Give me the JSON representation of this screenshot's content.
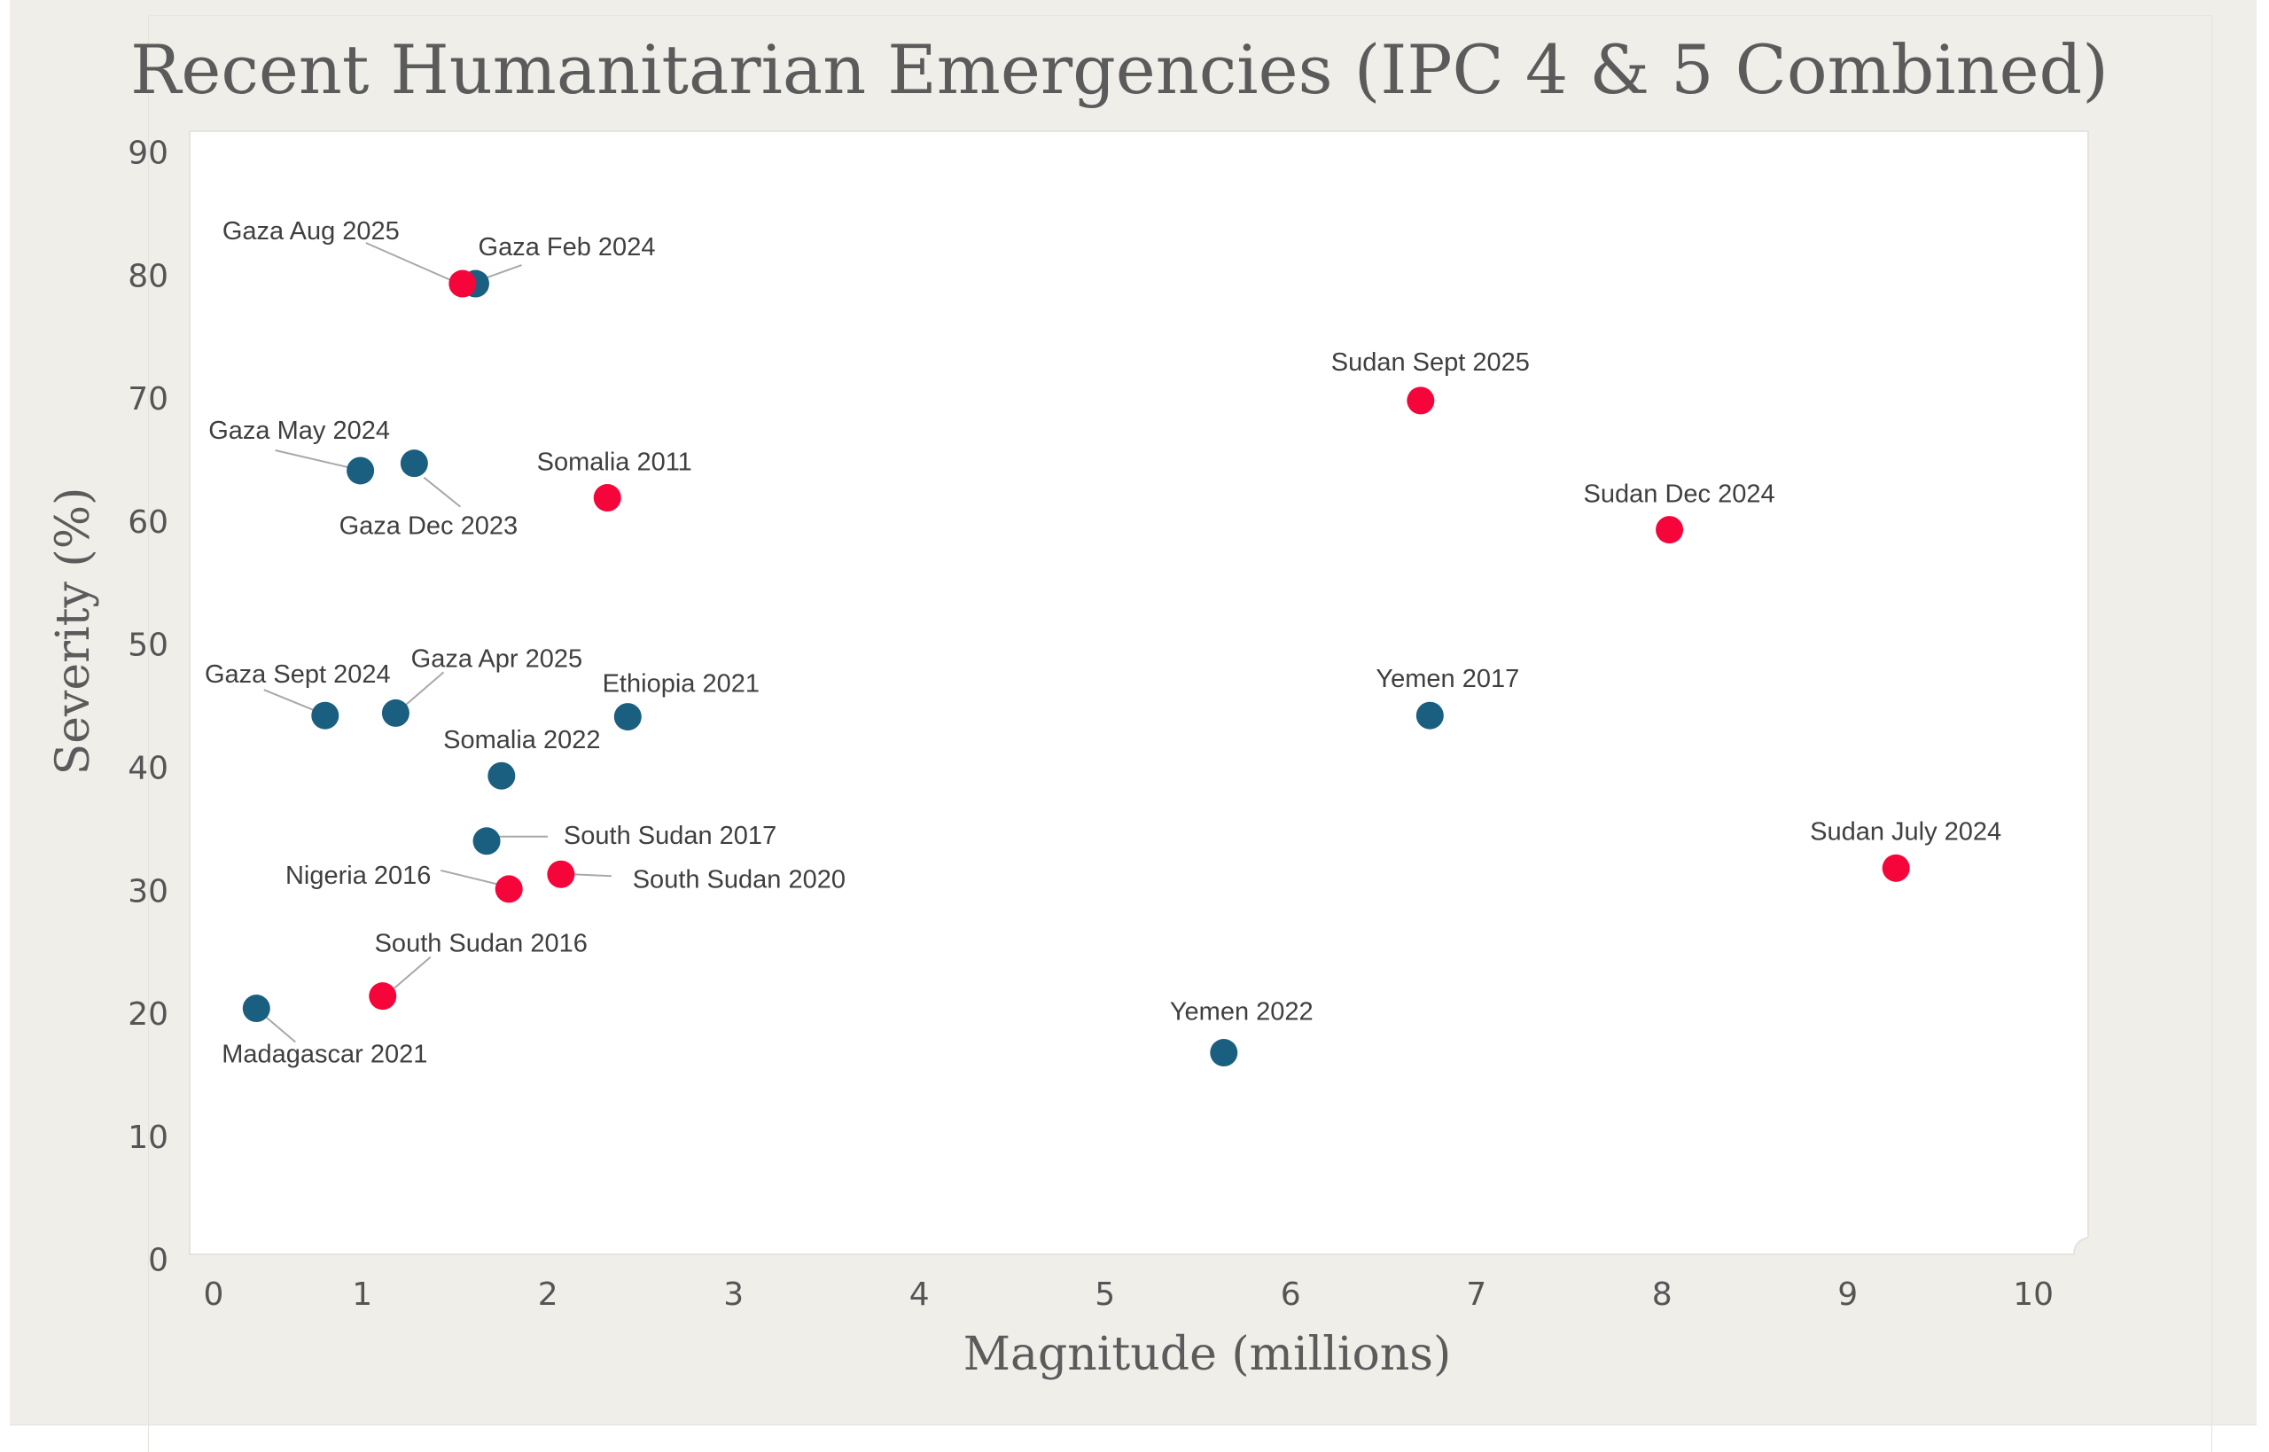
{
  "chart_data": {
    "type": "scatter",
    "title": "Recent Humanitarian Emergencies (IPC 4 & 5 Combined)",
    "xlabel": "Magnitude (millions)",
    "ylabel": "Severity (%)",
    "xlim": [
      -0.1,
      10.2
    ],
    "ylim": [
      0,
      91
    ],
    "x_ticks": [
      "0",
      "1",
      "2",
      "3",
      "4",
      "5",
      "6",
      "7",
      "8",
      "9",
      "10"
    ],
    "y_ticks": [
      "0",
      "10",
      "20",
      "30",
      "40",
      "50",
      "60",
      "70",
      "80",
      "90"
    ],
    "grid": false,
    "colors": {
      "red": "#f5053a",
      "blue": "#1a5f80"
    },
    "points": [
      {
        "label": "Gaza Feb 2024",
        "x": 1.61,
        "y": 79.3,
        "color": "blue"
      },
      {
        "label": "Gaza Aug 2025",
        "x": 1.54,
        "y": 79.3,
        "color": "red"
      },
      {
        "label": "Sudan Sept 2025",
        "x": 6.7,
        "y": 69.8,
        "color": "red"
      },
      {
        "label": "Gaza May 2024",
        "x": 0.99,
        "y": 64.1,
        "color": "blue"
      },
      {
        "label": "Gaza Dec 2023",
        "x": 1.28,
        "y": 64.7,
        "color": "blue"
      },
      {
        "label": "Somalia 2011",
        "x": 2.32,
        "y": 61.9,
        "color": "red"
      },
      {
        "label": "Sudan Dec 2024",
        "x": 8.04,
        "y": 59.3,
        "color": "red"
      },
      {
        "label": "Gaza Sept 2024",
        "x": 0.8,
        "y": 44.2,
        "color": "blue"
      },
      {
        "label": "Gaza Apr 2025",
        "x": 1.18,
        "y": 44.4,
        "color": "blue"
      },
      {
        "label": "Ethiopia 2021",
        "x": 2.43,
        "y": 44.1,
        "color": "blue"
      },
      {
        "label": "Yemen 2017",
        "x": 6.75,
        "y": 44.2,
        "color": "blue"
      },
      {
        "label": "Somalia 2022",
        "x": 1.75,
        "y": 39.3,
        "color": "blue"
      },
      {
        "label": "South Sudan 2017",
        "x": 1.67,
        "y": 34.0,
        "color": "blue"
      },
      {
        "label": "South Sudan 2020",
        "x": 2.07,
        "y": 31.3,
        "color": "red"
      },
      {
        "label": "Nigeria 2016",
        "x": 1.79,
        "y": 30.1,
        "color": "red"
      },
      {
        "label": "Sudan July 2024",
        "x": 9.26,
        "y": 31.8,
        "color": "red"
      },
      {
        "label": "South Sudan 2016",
        "x": 1.11,
        "y": 21.4,
        "color": "red"
      },
      {
        "label": "Madagascar 2021",
        "x": 0.43,
        "y": 20.4,
        "color": "blue"
      },
      {
        "label": "Yemen 2022",
        "x": 5.64,
        "y": 16.8,
        "color": "blue"
      }
    ]
  }
}
